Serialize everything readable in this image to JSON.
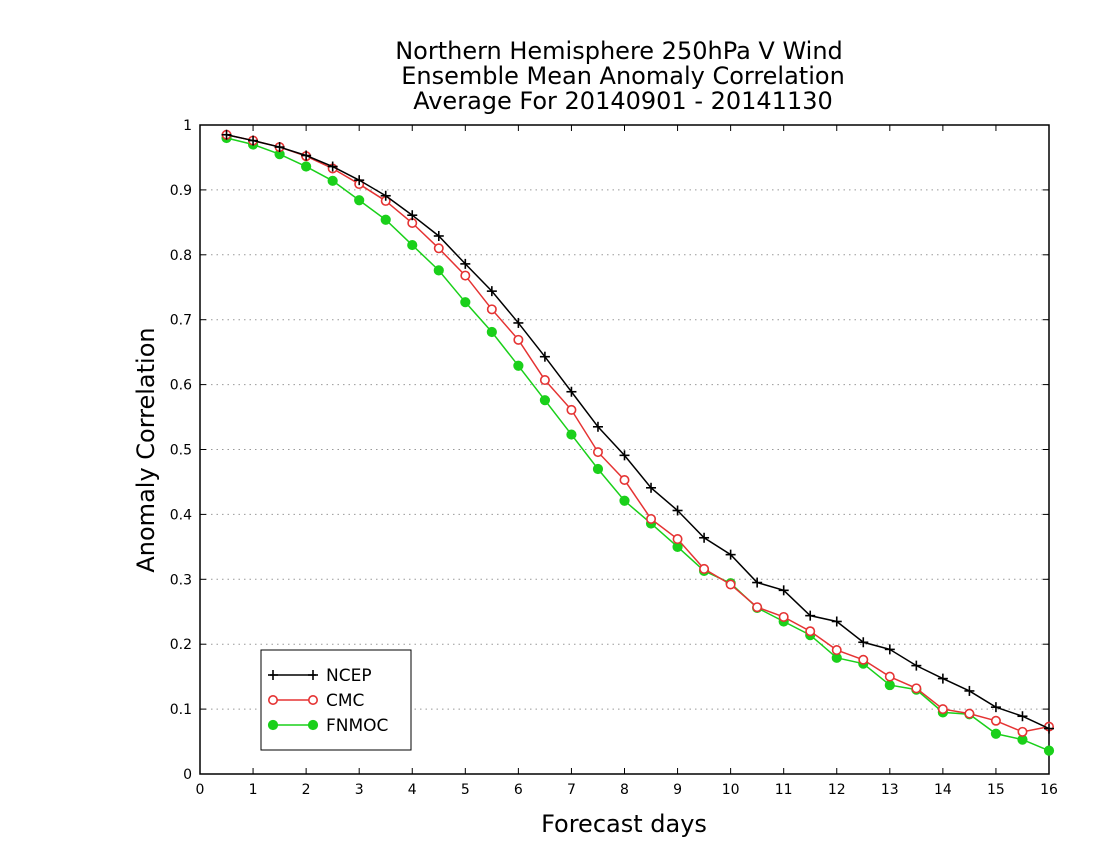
{
  "chart_data": {
    "type": "line",
    "title": [
      "Northern Hemisphere 250hPa V Wind",
      "Ensemble Mean Anomaly Correlation",
      "Average For 20140901 - 20141130"
    ],
    "xlabel": "Forecast days",
    "ylabel": "Anomaly Correlation",
    "xlim": [
      0,
      16
    ],
    "ylim": [
      0,
      1
    ],
    "xticks": [
      "0",
      "1",
      "2",
      "3",
      "4",
      "5",
      "6",
      "7",
      "8",
      "9",
      "10",
      "11",
      "12",
      "13",
      "14",
      "15",
      "16"
    ],
    "yticks": [
      "0",
      "0.1",
      "0.2",
      "0.3",
      "0.4",
      "0.5",
      "0.6",
      "0.7",
      "0.8",
      "0.9",
      "1"
    ],
    "grid": "horizontal-dotted",
    "legend_position": "bottom-left",
    "x": [
      0.5,
      1,
      1.5,
      2,
      2.5,
      3,
      3.5,
      4,
      4.5,
      5,
      5.5,
      6,
      6.5,
      7,
      7.5,
      8,
      8.5,
      9,
      9.5,
      10,
      10.5,
      11,
      11.5,
      12,
      12.5,
      13,
      13.5,
      14,
      14.5,
      15,
      15.5,
      16
    ],
    "series": [
      {
        "name": "NCEP",
        "color": "#000000",
        "marker": "plus",
        "values": [
          0.985,
          0.976,
          0.966,
          0.953,
          0.936,
          0.915,
          0.891,
          0.861,
          0.829,
          0.786,
          0.744,
          0.695,
          0.643,
          0.589,
          0.535,
          0.491,
          0.441,
          0.406,
          0.364,
          0.338,
          0.295,
          0.283,
          0.244,
          0.235,
          0.203,
          0.192,
          0.167,
          0.147,
          0.128,
          0.103,
          0.089,
          0.07
        ]
      },
      {
        "name": "CMC",
        "color": "#e53333",
        "marker": "open-circle",
        "values": [
          0.985,
          0.976,
          0.966,
          0.952,
          0.933,
          0.909,
          0.883,
          0.849,
          0.81,
          0.768,
          0.716,
          0.669,
          0.607,
          0.561,
          0.496,
          0.453,
          0.393,
          0.362,
          0.316,
          0.292,
          0.257,
          0.242,
          0.22,
          0.191,
          0.176,
          0.15,
          0.132,
          0.1,
          0.093,
          0.082,
          0.065,
          0.073
        ]
      },
      {
        "name": "FNMOC",
        "color": "#1ad01a",
        "marker": "filled-circle",
        "values": [
          0.98,
          0.97,
          0.955,
          0.936,
          0.914,
          0.884,
          0.854,
          0.815,
          0.776,
          0.727,
          0.681,
          0.629,
          0.576,
          0.523,
          0.47,
          0.421,
          0.386,
          0.35,
          0.313,
          0.294,
          0.256,
          0.235,
          0.214,
          0.179,
          0.17,
          0.137,
          0.13,
          0.095,
          0.092,
          0.062,
          0.053,
          0.036
        ]
      }
    ]
  }
}
